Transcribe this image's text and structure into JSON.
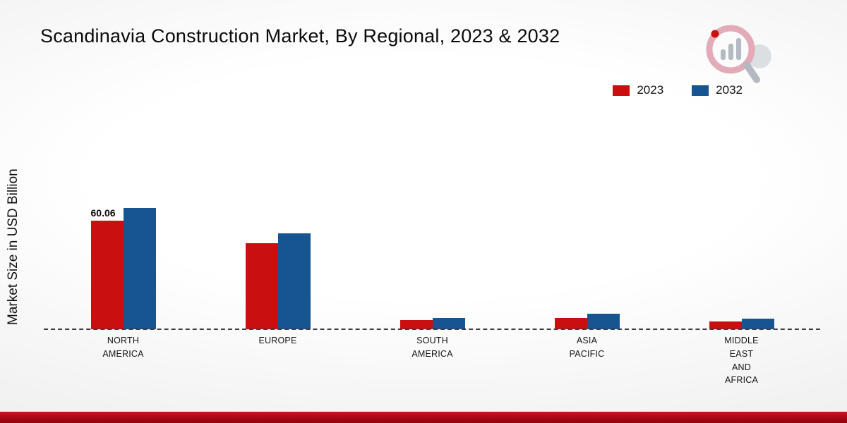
{
  "title": "Scandinavia Construction Market, By Regional, 2023 & 2032",
  "y_axis_label": "Market Size in USD Billion",
  "legend": [
    {
      "label": "2023",
      "color": "#c9100f"
    },
    {
      "label": "2032",
      "color": "#175590"
    }
  ],
  "chart_data": {
    "type": "bar",
    "title": "Scandinavia Construction Market, By Regional, 2023 & 2032",
    "xlabel": "",
    "ylabel": "Market Size in USD Billion",
    "ylim": [
      0,
      135
    ],
    "grid": false,
    "legend_position": "top-right",
    "categories": [
      "NORTH AMERICA",
      "EUROPE",
      "SOUTH AMERICA",
      "ASIA PACIFIC",
      "MIDDLE EAST AND AFRICA"
    ],
    "category_label_lines": [
      [
        "NORTH",
        "AMERICA"
      ],
      [
        "EUROPE"
      ],
      [
        "SOUTH",
        "AMERICA"
      ],
      [
        "ASIA",
        "PACIFIC"
      ],
      [
        "MIDDLE",
        "EAST",
        "AND",
        "AFRICA"
      ]
    ],
    "series": [
      {
        "name": "2023",
        "color": "#c9100f",
        "values": [
          60.06,
          47.5,
          5.2,
          6.3,
          4.2
        ]
      },
      {
        "name": "2032",
        "color": "#175590",
        "values": [
          67.0,
          53.0,
          6.3,
          8.5,
          6.0
        ]
      }
    ],
    "data_labels": [
      {
        "series": "2023",
        "category": "NORTH AMERICA",
        "text": "60.06"
      }
    ]
  }
}
